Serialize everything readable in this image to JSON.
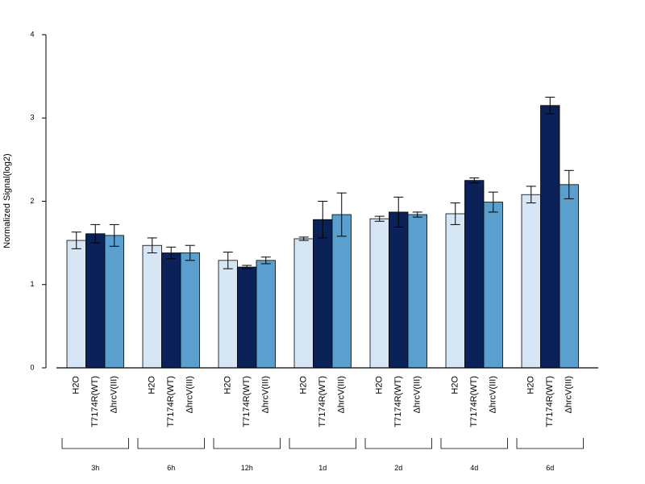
{
  "chart_data": {
    "type": "bar",
    "title": "",
    "xlabel": "",
    "ylabel": "Normalized Signal(log2)",
    "ylim": [
      0,
      4
    ],
    "yticks": [
      "0",
      "1",
      "2",
      "3",
      "4"
    ],
    "grid": false,
    "legend": "none",
    "categories": [
      "3h",
      "6h",
      "12h",
      "1d",
      "2d",
      "4d",
      "6d"
    ],
    "series": [
      {
        "label": "H2O",
        "color": "#d6e6f5",
        "values": [
          1.53,
          1.47,
          1.29,
          1.55,
          1.79,
          1.85,
          2.08
        ],
        "errors": [
          0.1,
          0.09,
          0.1,
          0.02,
          0.03,
          0.13,
          0.1
        ]
      },
      {
        "label": "T7174R(WT)",
        "color": "#0a2257",
        "values": [
          1.61,
          1.38,
          1.21,
          1.78,
          1.87,
          2.25,
          3.15
        ],
        "errors": [
          0.11,
          0.07,
          0.02,
          0.22,
          0.18,
          0.03,
          0.1
        ]
      },
      {
        "label": "ΔhrcV(III)",
        "color": "#5b9fce",
        "values": [
          1.59,
          1.38,
          1.29,
          1.84,
          1.84,
          1.99,
          2.2
        ],
        "errors": [
          0.13,
          0.09,
          0.04,
          0.26,
          0.03,
          0.12,
          0.17
        ]
      }
    ]
  }
}
